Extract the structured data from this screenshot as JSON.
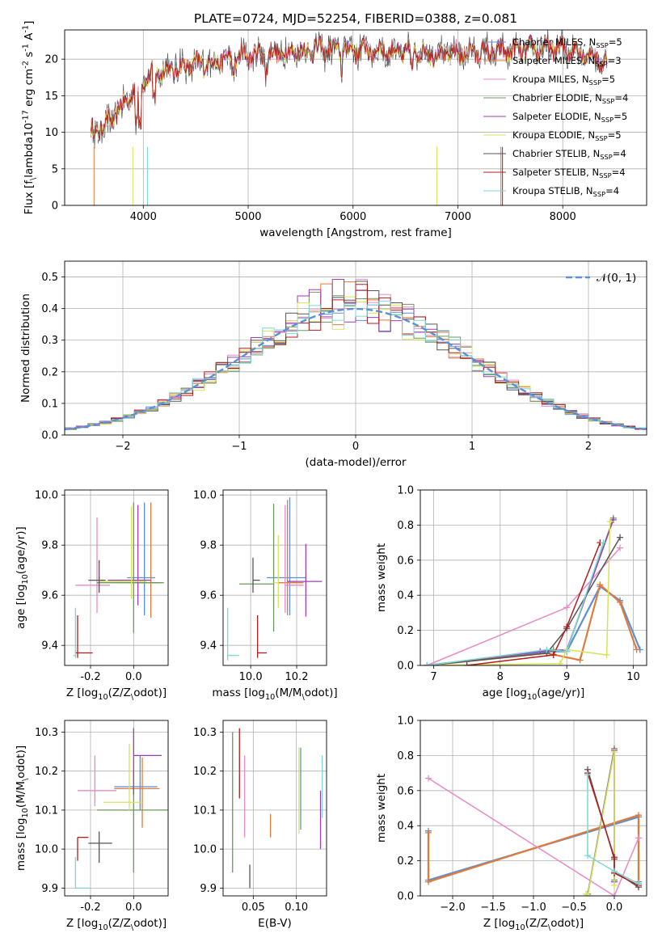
{
  "title": "PLATE=0724, MJD=52254, FIBERID=0388, z=0.081",
  "colors": [
    "#5b8fd8",
    "#e07b39",
    "#e98ac3",
    "#6a9a5a",
    "#9d3db5",
    "#d6e35a",
    "#555555",
    "#b31d1d",
    "#7fd6d6"
  ],
  "chart_data": [
    {
      "type": "line",
      "name": "spectrum",
      "xlabel": "wavelength [Angstrom, rest frame]",
      "ylabel": "Flux [f$_\\lambda$10$^{-17}$ erg cm$^{-2}$ s$^{-1}$ A$^{-1}$]",
      "xlim": [
        3250,
        8800
      ],
      "ylim": [
        0,
        24
      ],
      "x_ticks": [
        4000,
        5000,
        6000,
        7000,
        8000
      ],
      "y_ticks": [
        0,
        5,
        10,
        15,
        20
      ],
      "legend_position": "top-right",
      "series": [
        {
          "name": "Chabrier MILES, N$_{SSP}$=5"
        },
        {
          "name": "Salpeter MILES, N$_{SSP}$=3"
        },
        {
          "name": "Kroupa MILES, N$_{SSP}$=5"
        },
        {
          "name": "Chabrier ELODIE, N$_{SSP}$=4"
        },
        {
          "name": "Salpeter ELODIE, N$_{SSP}$=5"
        },
        {
          "name": "Kroupa ELODIE, N$_{SSP}$=5"
        },
        {
          "name": "Chabrier STELIB, N$_{SSP}$=4"
        },
        {
          "name": "Salpeter STELIB, N$_{SSP}$=4"
        },
        {
          "name": "Kroupa STELIB, N$_{SSP}$=4"
        }
      ],
      "continuum": {
        "x": [
          3500,
          3600,
          3700,
          3800,
          3900,
          4000,
          4100,
          4200,
          4400,
          4600,
          4800,
          5000,
          5200,
          5400,
          5600,
          5800,
          6000,
          6200,
          6400,
          6600,
          6800,
          7000,
          7200,
          7400,
          7600,
          7800,
          8000,
          8200,
          8400
        ],
        "y": [
          10,
          10.5,
          12,
          13.5,
          15.5,
          17,
          18,
          18.5,
          19,
          19.5,
          20,
          20.5,
          20.8,
          21,
          21.2,
          21.3,
          21.3,
          21.2,
          21,
          20.9,
          20.8,
          20.8,
          20.9,
          21,
          21.2,
          21.4,
          21.5,
          21,
          19.5
        ]
      }
    },
    {
      "type": "histogram",
      "name": "residuals",
      "xlabel": "(data-model)/error",
      "ylabel": "Normed distribution",
      "xlim": [
        -2.5,
        2.5
      ],
      "ylim": [
        0,
        0.55
      ],
      "x_ticks": [
        -2,
        -1,
        0,
        1,
        2
      ],
      "y_ticks": [
        0.0,
        0.1,
        0.2,
        0.3,
        0.4,
        0.5
      ],
      "reference_curve": {
        "name": "$\\mathcal{N}(0,1)$",
        "mean": 0,
        "sigma": 1
      },
      "legend_position": "top-right",
      "bin_width": 0.1
    },
    {
      "type": "scatter",
      "name": "age-vs-Z",
      "xlabel": "Z [log$_{10}$($Z/Z_\\odot$)]",
      "ylabel": "age  [log$_{10}$($age/yr$)]",
      "xlim": [
        -0.32,
        0.16
      ],
      "ylim": [
        9.32,
        10.02
      ],
      "x_ticks": [
        -0.2,
        0.0
      ],
      "y_ticks": [
        9.4,
        9.6,
        9.8,
        10.0
      ],
      "crosses": [
        {
          "x": 0.05,
          "y": 9.67,
          "xerr": [
            0.08,
            0.05
          ],
          "yerr": [
            0.15,
            0.3
          ]
        },
        {
          "x": 0.08,
          "y": 9.65,
          "xerr": [
            0.06,
            0.04
          ],
          "yerr": [
            0.14,
            0.32
          ]
        },
        {
          "x": -0.17,
          "y": 9.64,
          "xerr": [
            0.1,
            0.06
          ],
          "yerr": [
            0.11,
            0.27
          ]
        },
        {
          "x": 0.0,
          "y": 9.65,
          "xerr": [
            0.17,
            0.14
          ],
          "yerr": [
            0.2,
            0.32
          ]
        },
        {
          "x": 0.02,
          "y": 9.66,
          "xerr": [
            0.14,
            0.06
          ],
          "yerr": [
            0.1,
            0.3
          ]
        },
        {
          "x": -0.01,
          "y": 9.655,
          "xerr": [
            0.15,
            0.07
          ],
          "yerr": [
            0.07,
            0.3
          ]
        },
        {
          "x": -0.16,
          "y": 9.66,
          "xerr": [
            0.05,
            0.03
          ],
          "yerr": [
            0.05,
            0.08
          ]
        },
        {
          "x": -0.26,
          "y": 9.37,
          "xerr": [
            0.01,
            0.07
          ],
          "yerr": [
            0.02,
            0.15
          ]
        },
        {
          "x": -0.27,
          "y": 9.36,
          "xerr": [
            0.01,
            0.0
          ],
          "yerr": [
            0.01,
            0.19
          ]
        }
      ]
    },
    {
      "type": "scatter",
      "name": "age-vs-mass",
      "xlabel": "mass [log$_{10}$($M/M_\\odot$)]",
      "ylabel": "",
      "xlim": [
        9.88,
        10.33
      ],
      "ylim": [
        9.32,
        10.02
      ],
      "x_ticks": [
        10.0,
        10.2
      ],
      "y_ticks": [
        9.4,
        9.6,
        9.8,
        10.0
      ],
      "crosses": [
        {
          "x": 10.17,
          "y": 9.67,
          "xerr": [
            0.1,
            0.07
          ],
          "yerr": [
            0.15,
            0.32
          ]
        },
        {
          "x": 10.16,
          "y": 9.65,
          "xerr": [
            0.04,
            0.07
          ],
          "yerr": [
            0.13,
            0.33
          ]
        },
        {
          "x": 10.15,
          "y": 9.64,
          "xerr": [
            0.0,
            0.08
          ],
          "yerr": [
            0.11,
            0.32
          ]
        },
        {
          "x": 10.1,
          "y": 9.645,
          "xerr": [
            0.15,
            0.0
          ],
          "yerr": [
            0.19,
            0.32
          ]
        },
        {
          "x": 10.24,
          "y": 9.655,
          "xerr": [
            0.08,
            0.07
          ],
          "yerr": [
            0.14,
            0.15
          ]
        },
        {
          "x": 10.12,
          "y": 9.65,
          "xerr": [
            0.02,
            0.0
          ],
          "yerr": [
            0.1,
            0.19
          ]
        },
        {
          "x": 10.01,
          "y": 9.66,
          "xerr": [
            0.0,
            0.03
          ],
          "yerr": [
            0.05,
            0.09
          ]
        },
        {
          "x": 10.03,
          "y": 9.37,
          "xerr": [
            0.0,
            0.04
          ],
          "yerr": [
            0.02,
            0.15
          ]
        },
        {
          "x": 9.9,
          "y": 9.36,
          "xerr": [
            0.0,
            0.05
          ],
          "yerr": [
            0.02,
            0.19
          ]
        }
      ]
    },
    {
      "type": "line",
      "name": "mass-weight-vs-age",
      "xlabel": "age  [log$_{10}$($age/yr$)]",
      "ylabel": "mass weight",
      "xlim": [
        6.8,
        10.2
      ],
      "ylim": [
        0,
        1.0
      ],
      "x_ticks": [
        7,
        8,
        9,
        10
      ],
      "y_ticks": [
        0.0,
        0.2,
        0.4,
        0.6,
        0.8,
        1.0
      ],
      "series": [
        {
          "x": [
            6.9,
            8.7,
            9.0,
            9.5,
            9.8,
            10.1
          ],
          "y": [
            0.0,
            0.08,
            0.08,
            0.45,
            0.37,
            0.09
          ]
        },
        {
          "x": [
            6.9,
            8.7,
            9.2,
            9.5,
            9.8,
            10.05
          ],
          "y": [
            0.0,
            0.07,
            0.03,
            0.46,
            0.36,
            0.09
          ]
        },
        {
          "x": [
            6.9,
            9.0,
            9.8
          ],
          "y": [
            0.0,
            0.33,
            0.67
          ]
        },
        {
          "x": [
            6.9,
            8.8,
            9.0,
            9.7
          ],
          "y": [
            0.0,
            0.09,
            0.08,
            0.84
          ]
        },
        {
          "x": [
            6.9,
            8.6,
            9.0,
            9.7
          ],
          "y": [
            0.0,
            0.08,
            0.09,
            0.83
          ]
        },
        {
          "x": [
            6.9,
            8.9,
            9.0,
            9.6,
            9.65
          ],
          "y": [
            0.0,
            0.01,
            0.09,
            0.06,
            0.82
          ]
        },
        {
          "x": [
            6.9,
            8.7,
            9.0,
            9.8
          ],
          "y": [
            0.0,
            0.07,
            0.21,
            0.73
          ]
        },
        {
          "x": [
            7.5,
            8.8,
            9.0,
            9.5
          ],
          "y": [
            0.0,
            0.06,
            0.22,
            0.7
          ]
        },
        {
          "x": [
            6.9,
            8.7,
            9.0,
            9.55
          ],
          "y": [
            0.0,
            0.09,
            0.08,
            0.7
          ]
        }
      ]
    },
    {
      "type": "scatter",
      "name": "mass-vs-Z",
      "xlabel": "Z [log$_{10}$($Z/Z_\\odot$)]",
      "ylabel": "mass [log$_{10}$($M/M_\\odot$)]",
      "xlim": [
        -0.32,
        0.16
      ],
      "ylim": [
        9.88,
        10.33
      ],
      "x_ticks": [
        -0.2,
        0.0
      ],
      "y_ticks": [
        9.9,
        10.0,
        10.1,
        10.2,
        10.3
      ],
      "crosses": [
        {
          "x": 0.03,
          "y": 10.16,
          "xerr": [
            0.12,
            0.08
          ],
          "yerr": [
            0.06,
            0.08
          ]
        },
        {
          "x": 0.04,
          "y": 10.155,
          "xerr": [
            0.13,
            0.08
          ],
          "yerr": [
            0.1,
            0.08
          ]
        },
        {
          "x": -0.18,
          "y": 10.15,
          "xerr": [
            0.08,
            0.1
          ],
          "yerr": [
            0.04,
            0.09
          ]
        },
        {
          "x": 0.0,
          "y": 10.1,
          "xerr": [
            0.17,
            0.16
          ],
          "yerr": [
            0.16,
            0.1
          ]
        },
        {
          "x": 0.0,
          "y": 10.24,
          "xerr": [
            0.0,
            0.13
          ],
          "yerr": [
            0.1,
            0.07
          ]
        },
        {
          "x": -0.02,
          "y": 10.12,
          "xerr": [
            0.12,
            0.06
          ],
          "yerr": [
            0.02,
            0.15
          ]
        },
        {
          "x": -0.16,
          "y": 10.015,
          "xerr": [
            0.05,
            0.06
          ],
          "yerr": [
            0.05,
            0.03
          ]
        },
        {
          "x": -0.26,
          "y": 10.03,
          "xerr": [
            0.0,
            0.05
          ],
          "yerr": [
            0.06,
            0.0
          ]
        },
        {
          "x": -0.27,
          "y": 9.9,
          "xerr": [
            0.0,
            0.07
          ],
          "yerr": [
            0.0,
            0.08
          ]
        }
      ]
    },
    {
      "type": "scatter",
      "name": "mass-vs-EBV",
      "xlabel": "E(B-V)",
      "ylabel": "",
      "xlim": [
        0.015,
        0.135
      ],
      "ylim": [
        9.88,
        10.33
      ],
      "x_ticks": [
        0.05,
        0.1
      ],
      "y_ticks": [
        9.9,
        10.0,
        10.1,
        10.2,
        10.3
      ],
      "segments": [
        {
          "x": 0.026,
          "y0": 9.94,
          "y1": 10.3
        },
        {
          "x": 0.034,
          "y0": 10.13,
          "y1": 10.31
        },
        {
          "x": 0.04,
          "y0": 10.03,
          "y1": 10.24
        },
        {
          "x": 0.046,
          "y0": 9.9,
          "y1": 9.96
        },
        {
          "x": 0.07,
          "y0": 10.03,
          "y1": 10.09
        },
        {
          "x": 0.103,
          "y0": 10.04,
          "y1": 10.26
        },
        {
          "x": 0.105,
          "y0": 10.05,
          "y1": 10.26
        },
        {
          "x": 0.128,
          "y0": 10.0,
          "y1": 10.15
        },
        {
          "x": 0.13,
          "y0": 10.08,
          "y1": 10.24
        }
      ]
    },
    {
      "type": "line",
      "name": "mass-weight-vs-Z",
      "xlabel": "Z [log$_{10}$($Z/Z_\\odot$)]",
      "ylabel": "mass weight",
      "xlim": [
        -2.4,
        0.4
      ],
      "ylim": [
        0,
        1.0
      ],
      "x_ticks": [
        -2.0,
        -1.5,
        -1.0,
        -0.5,
        0.0
      ],
      "y_ticks": [
        0.0,
        0.2,
        0.4,
        0.6,
        0.8,
        1.0
      ],
      "series": [
        {
          "x": [
            -2.3,
            -2.3,
            0.3,
            0.3
          ],
          "y": [
            0.37,
            0.09,
            0.45,
            0.08
          ]
        },
        {
          "x": [
            -2.3,
            -2.3,
            0.3,
            0.3
          ],
          "y": [
            0.36,
            0.08,
            0.46,
            0.07
          ]
        },
        {
          "x": [
            -2.3,
            0.0,
            0.3
          ],
          "y": [
            0.67,
            0.0,
            0.33
          ]
        },
        {
          "x": [
            -0.33,
            0.0,
            0.0
          ],
          "y": [
            0.01,
            0.84,
            0.09
          ]
        },
        {
          "x": [
            -0.33,
            0.0,
            0.0
          ],
          "y": [
            0.0,
            0.83,
            0.08
          ]
        },
        {
          "x": [
            -0.35,
            -0.33,
            0.0,
            0.0
          ],
          "y": [
            0.01,
            0.0,
            0.82,
            0.06
          ]
        },
        {
          "x": [
            -0.33,
            0.0,
            0.0,
            0.3
          ],
          "y": [
            0.72,
            0.21,
            0.14,
            0.05
          ]
        },
        {
          "x": [
            -0.33,
            0.0,
            0.0,
            0.3
          ],
          "y": [
            0.7,
            0.22,
            0.13,
            0.06
          ]
        },
        {
          "x": [
            -0.33,
            -0.33,
            0.0,
            0.3
          ],
          "y": [
            0.69,
            0.23,
            0.14,
            0.07
          ]
        }
      ]
    }
  ]
}
